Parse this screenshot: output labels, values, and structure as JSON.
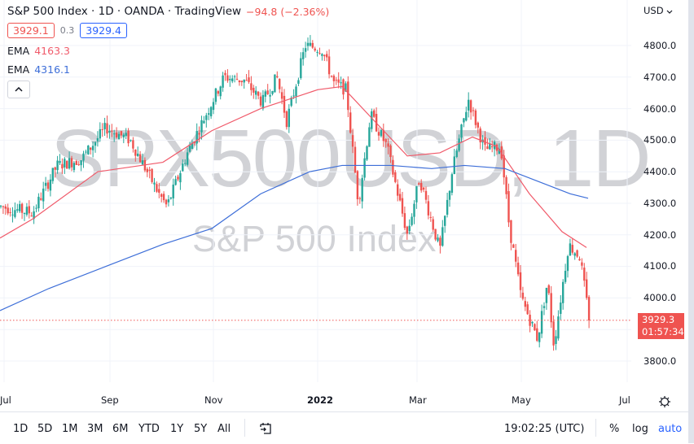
{
  "header": {
    "title": "S&P 500 Index · 1D · OANDA · TradingView",
    "change": "−94.8 (−2.36%)",
    "bid": "3929.1",
    "spread": "0.3",
    "ask": "3929.4",
    "ema1_label": "EMA",
    "ema1_value": "4163.3",
    "ema2_label": "EMA",
    "ema2_value": "4316.1",
    "collapse_icon": "chevron-up-icon"
  },
  "watermark": {
    "symbol": "SPX500USD, 1D",
    "name": "S&P 500 Index"
  },
  "price_axis": {
    "currency": "USD",
    "labels": [
      "4800.0",
      "4700.0",
      "4600.0",
      "4500.0",
      "4400.0",
      "4300.0",
      "4200.0",
      "4100.0",
      "4000.0",
      "3800.0"
    ],
    "last_price": "3929.3",
    "countdown": "01:57:34"
  },
  "time_axis": {
    "labels": [
      "Jul",
      "Sep",
      "Nov",
      "2022",
      "Mar",
      "May",
      "Jul"
    ]
  },
  "bottom_bar": {
    "ranges": [
      "1D",
      "5D",
      "1M",
      "3M",
      "6M",
      "YTD",
      "1Y",
      "5Y",
      "All"
    ],
    "goto_icon": "calendar-goto-icon",
    "clock": "19:02:25 (UTC)",
    "percent": "%",
    "log": "log",
    "auto": "auto"
  },
  "colors": {
    "up": "#26a69a",
    "down": "#ef5350",
    "ema_fast": "#f05a6a",
    "ema_slow": "#3d6ed8",
    "grid": "#f0f3fa",
    "accent": "#2962ff"
  },
  "chart_data": {
    "type": "candlestick",
    "title": "S&P 500 Index · 1D · OANDA",
    "xlabel": "",
    "ylabel": "USD",
    "ylim": [
      3720,
      4830
    ],
    "x_ticks": [
      "Jul",
      "Sep",
      "Nov",
      "2022",
      "Mar",
      "May",
      "Jul"
    ],
    "y_ticks": [
      3800,
      3900,
      4000,
      4100,
      4200,
      4300,
      4400,
      4500,
      4600,
      4700,
      4800
    ],
    "grid": true,
    "last_price": 3929.3,
    "key_points": [
      {
        "date": "2021-07",
        "close": 4290
      },
      {
        "date": "2021-08",
        "close": 4440
      },
      {
        "date": "2021-09-02",
        "close": 4540
      },
      {
        "date": "2021-10-04",
        "close": 4300
      },
      {
        "date": "2021-11-04",
        "close": 4700
      },
      {
        "date": "2021-11-30",
        "close": 4560
      },
      {
        "date": "2022-01-04",
        "close": 4800
      },
      {
        "date": "2022-01-27",
        "close": 4300
      },
      {
        "date": "2022-02-02",
        "close": 4590
      },
      {
        "date": "2022-02-24",
        "close": 4150
      },
      {
        "date": "2022-03-29",
        "close": 4630
      },
      {
        "date": "2022-04-29",
        "close": 4130
      },
      {
        "date": "2022-05-20",
        "close": 3860
      },
      {
        "date": "2022-06-02",
        "close": 4180
      },
      {
        "date": "2022-06-10",
        "close": 3929
      }
    ],
    "series": [
      {
        "name": "EMA (fast, 50)",
        "last": 4163.3,
        "points": [
          [
            0,
            4190
          ],
          [
            40,
            4250
          ],
          [
            120,
            4400
          ],
          [
            200,
            4430
          ],
          [
            260,
            4530
          ],
          [
            320,
            4600
          ],
          [
            390,
            4660
          ],
          [
            420,
            4670
          ],
          [
            460,
            4560
          ],
          [
            500,
            4450
          ],
          [
            540,
            4460
          ],
          [
            580,
            4510
          ],
          [
            610,
            4480
          ],
          [
            650,
            4330
          ],
          [
            690,
            4210
          ],
          [
            720,
            4160
          ]
        ]
      },
      {
        "name": "EMA (slow, 200)",
        "last": 4316.1,
        "points": [
          [
            0,
            3960
          ],
          [
            60,
            4030
          ],
          [
            130,
            4100
          ],
          [
            200,
            4170
          ],
          [
            260,
            4220
          ],
          [
            320,
            4330
          ],
          [
            380,
            4400
          ],
          [
            420,
            4420
          ],
          [
            480,
            4420
          ],
          [
            530,
            4410
          ],
          [
            570,
            4420
          ],
          [
            620,
            4410
          ],
          [
            660,
            4370
          ],
          [
            700,
            4330
          ],
          [
            722,
            4316
          ]
        ]
      }
    ]
  }
}
